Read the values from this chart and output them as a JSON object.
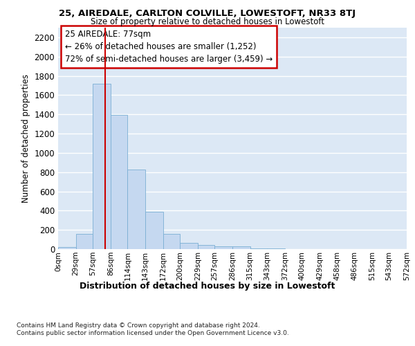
{
  "title": "25, AIREDALE, CARLTON COLVILLE, LOWESTOFT, NR33 8TJ",
  "subtitle": "Size of property relative to detached houses in Lowestoft",
  "xlabel": "Distribution of detached houses by size in Lowestoft",
  "ylabel": "Number of detached properties",
  "bar_color": "#c5d8f0",
  "bar_edge_color": "#7aafd4",
  "background_color": "#dce8f5",
  "grid_color": "#ffffff",
  "vline_value": 77,
  "vline_color": "#cc0000",
  "annotation_line1": "25 AIREDALE: 77sqm",
  "annotation_line2": "← 26% of detached houses are smaller (1,252)",
  "annotation_line3": "72% of semi-detached houses are larger (3,459) →",
  "annotation_box_color": "#cc0000",
  "bin_edges": [
    0,
    29,
    57,
    86,
    114,
    143,
    172,
    200,
    229,
    257,
    286,
    315,
    343,
    372,
    400,
    429,
    458,
    486,
    515,
    543,
    572
  ],
  "bin_labels": [
    "0sqm",
    "29sqm",
    "57sqm",
    "86sqm",
    "114sqm",
    "143sqm",
    "172sqm",
    "200sqm",
    "229sqm",
    "257sqm",
    "286sqm",
    "315sqm",
    "343sqm",
    "372sqm",
    "400sqm",
    "429sqm",
    "458sqm",
    "486sqm",
    "515sqm",
    "543sqm",
    "572sqm"
  ],
  "bar_heights": [
    20,
    155,
    1720,
    1395,
    830,
    385,
    160,
    65,
    40,
    30,
    30,
    5,
    5,
    0,
    0,
    0,
    0,
    0,
    0,
    0
  ],
  "ylim": [
    0,
    2300
  ],
  "yticks": [
    0,
    200,
    400,
    600,
    800,
    1000,
    1200,
    1400,
    1600,
    1800,
    2000,
    2200
  ],
  "footer_line1": "Contains HM Land Registry data © Crown copyright and database right 2024.",
  "footer_line2": "Contains public sector information licensed under the Open Government Licence v3.0."
}
